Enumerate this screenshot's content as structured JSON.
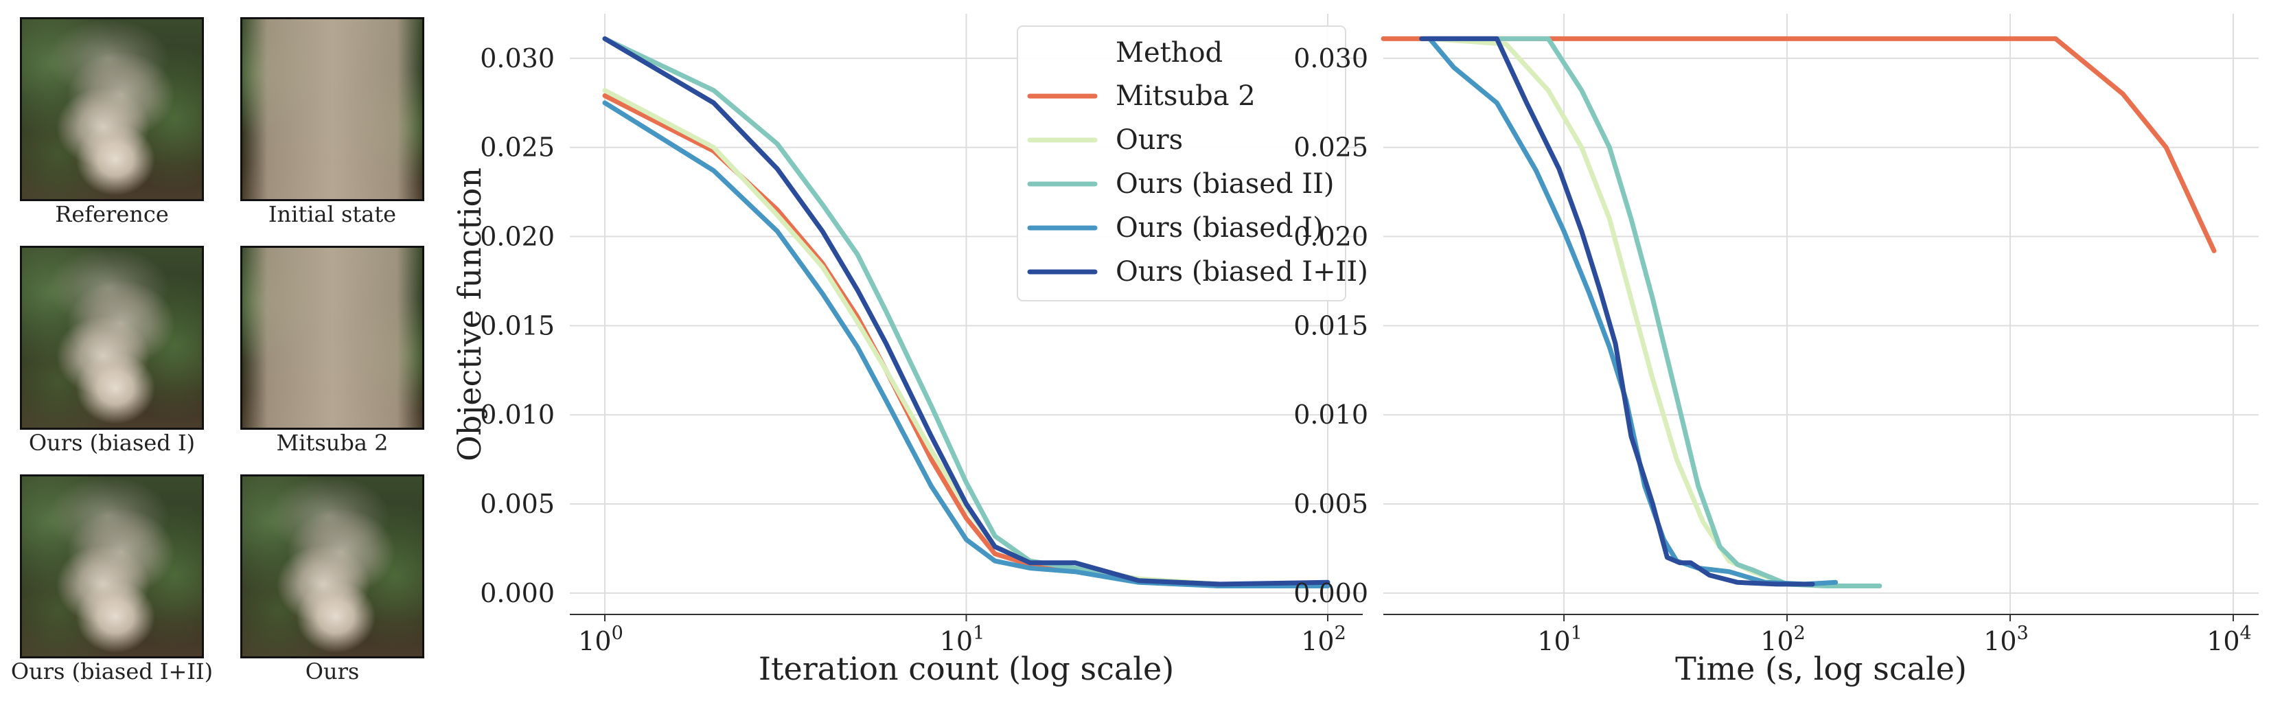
{
  "thumbnails": [
    {
      "label": "Reference",
      "variant": "smoke"
    },
    {
      "label": "Initial state",
      "variant": "fog"
    },
    {
      "label": "Ours (biased I)",
      "variant": "smoke"
    },
    {
      "label": "Mitsuba 2",
      "variant": "fog"
    },
    {
      "label": "Ours (biased I+II)",
      "variant": "smoke"
    },
    {
      "label": "Ours",
      "variant": "smoke"
    }
  ],
  "chart_data": [
    {
      "type": "line",
      "xscale": "log",
      "xlabel": "Iteration count (log scale)",
      "ylabel": "Objective function",
      "ylim": [
        -0.0012,
        0.0325
      ],
      "xlim": [
        0.8,
        125
      ],
      "xticks": [
        {
          "v": 1,
          "base": "10",
          "exp": "0"
        },
        {
          "v": 10,
          "base": "10",
          "exp": "1"
        },
        {
          "v": 100,
          "base": "10",
          "exp": "2"
        }
      ],
      "yticks": [
        "0.000",
        "0.005",
        "0.010",
        "0.015",
        "0.020",
        "0.025",
        "0.030"
      ],
      "grid": true,
      "legend": {
        "title": "Method",
        "position": "top-right"
      },
      "series": [
        {
          "name": "Mitsuba 2",
          "color": "#e8704e",
          "points": [
            [
              1,
              0.0279
            ],
            [
              2,
              0.0248
            ],
            [
              3,
              0.0215
            ],
            [
              4,
              0.0185
            ],
            [
              5,
              0.0155
            ],
            [
              6,
              0.0125
            ],
            [
              8,
              0.0075
            ],
            [
              10,
              0.0042
            ],
            [
              12,
              0.0022
            ],
            [
              15,
              0.0016
            ],
            [
              20,
              0.0013
            ],
            [
              30,
              0.0007
            ],
            [
              50,
              0.0004
            ],
            [
              100,
              0.0004
            ]
          ]
        },
        {
          "name": "Ours",
          "color": "#d9eebb",
          "points": [
            [
              1,
              0.0282
            ],
            [
              2,
              0.025
            ],
            [
              3,
              0.0212
            ],
            [
              4,
              0.0183
            ],
            [
              5,
              0.0152
            ],
            [
              6,
              0.0125
            ],
            [
              8,
              0.008
            ],
            [
              10,
              0.0048
            ],
            [
              12,
              0.0026
            ],
            [
              15,
              0.0018
            ],
            [
              20,
              0.0014
            ],
            [
              30,
              0.0008
            ],
            [
              50,
              0.0005
            ],
            [
              100,
              0.0004
            ]
          ]
        },
        {
          "name": "Ours (biased II)",
          "color": "#82c7bc",
          "points": [
            [
              1,
              0.0311
            ],
            [
              2,
              0.0282
            ],
            [
              3,
              0.0252
            ],
            [
              4,
              0.0218
            ],
            [
              5,
              0.019
            ],
            [
              6,
              0.0158
            ],
            [
              8,
              0.0105
            ],
            [
              10,
              0.0062
            ],
            [
              12,
              0.0032
            ],
            [
              15,
              0.0018
            ],
            [
              20,
              0.0014
            ],
            [
              30,
              0.0007
            ],
            [
              50,
              0.0005
            ],
            [
              100,
              0.0004
            ]
          ]
        },
        {
          "name": "Ours (biased I)",
          "color": "#4596c2",
          "points": [
            [
              1,
              0.0275
            ],
            [
              2,
              0.0237
            ],
            [
              3,
              0.0203
            ],
            [
              4,
              0.0168
            ],
            [
              5,
              0.0138
            ],
            [
              6,
              0.0108
            ],
            [
              8,
              0.006
            ],
            [
              10,
              0.003
            ],
            [
              12,
              0.0018
            ],
            [
              15,
              0.0014
            ],
            [
              20,
              0.0012
            ],
            [
              30,
              0.0006
            ],
            [
              50,
              0.0004
            ],
            [
              100,
              0.0004
            ]
          ]
        },
        {
          "name": "Ours (biased I+II)",
          "color": "#2b4c9b",
          "points": [
            [
              1,
              0.0311
            ],
            [
              2,
              0.0275
            ],
            [
              3,
              0.0238
            ],
            [
              4,
              0.0203
            ],
            [
              5,
              0.017
            ],
            [
              6,
              0.014
            ],
            [
              8,
              0.0088
            ],
            [
              10,
              0.005
            ],
            [
              12,
              0.0026
            ],
            [
              15,
              0.0017
            ],
            [
              20,
              0.0017
            ],
            [
              30,
              0.0007
            ],
            [
              50,
              0.0005
            ],
            [
              100,
              0.0006
            ]
          ]
        }
      ]
    },
    {
      "type": "line",
      "xscale": "log",
      "xlabel": "Time (s, log scale)",
      "ylabel": "",
      "ylim": [
        -0.0012,
        0.0325
      ],
      "xlim": [
        1.55,
        13000
      ],
      "xticks": [
        {
          "v": 10,
          "base": "10",
          "exp": "1"
        },
        {
          "v": 100,
          "base": "10",
          "exp": "2"
        },
        {
          "v": 1000,
          "base": "10",
          "exp": "3"
        },
        {
          "v": 10000,
          "base": "10",
          "exp": "4"
        }
      ],
      "yticks": [
        "0.000",
        "0.005",
        "0.010",
        "0.015",
        "0.020",
        "0.025",
        "0.030"
      ],
      "grid": true,
      "series": [
        {
          "name": "Mitsuba 2",
          "color": "#e8704e",
          "points": [
            [
              1.55,
              0.0311
            ],
            [
              1600,
              0.0311
            ],
            [
              3200,
              0.028
            ],
            [
              5000,
              0.025
            ],
            [
              8200,
              0.0192
            ]
          ]
        },
        {
          "name": "Ours",
          "color": "#d9eebb",
          "points": [
            [
              2.5,
              0.0311
            ],
            [
              5.5,
              0.0308
            ],
            [
              8.5,
              0.0282
            ],
            [
              12,
              0.025
            ],
            [
              16,
              0.021
            ],
            [
              20,
              0.0165
            ],
            [
              25,
              0.012
            ],
            [
              32,
              0.0075
            ],
            [
              42,
              0.004
            ],
            [
              55,
              0.0018
            ],
            [
              70,
              0.0012
            ],
            [
              100,
              0.0005
            ],
            [
              150,
              0.0004
            ],
            [
              250,
              0.0004
            ]
          ]
        },
        {
          "name": "Ours (biased II)",
          "color": "#82c7bc",
          "points": [
            [
              2.5,
              0.0311
            ],
            [
              8.5,
              0.0311
            ],
            [
              12,
              0.0282
            ],
            [
              16,
              0.025
            ],
            [
              20,
              0.021
            ],
            [
              25,
              0.0165
            ],
            [
              32,
              0.011
            ],
            [
              40,
              0.006
            ],
            [
              50,
              0.0026
            ],
            [
              60,
              0.0016
            ],
            [
              70,
              0.0013
            ],
            [
              100,
              0.0005
            ],
            [
              150,
              0.0004
            ],
            [
              260,
              0.0004
            ]
          ]
        },
        {
          "name": "Ours (biased I)",
          "color": "#4596c2",
          "points": [
            [
              2.5,
              0.0311
            ],
            [
              3.2,
              0.0295
            ],
            [
              5,
              0.0275
            ],
            [
              7.5,
              0.0237
            ],
            [
              10,
              0.0203
            ],
            [
              13,
              0.0168
            ],
            [
              16,
              0.0138
            ],
            [
              19,
              0.0108
            ],
            [
              23,
              0.006
            ],
            [
              28,
              0.003
            ],
            [
              32,
              0.0018
            ],
            [
              40,
              0.0014
            ],
            [
              55,
              0.0012
            ],
            [
              80,
              0.0006
            ],
            [
              120,
              0.0005
            ],
            [
              165,
              0.0006
            ]
          ]
        },
        {
          "name": "Ours (biased I+II)",
          "color": "#2b4c9b",
          "points": [
            [
              2.3,
              0.0311
            ],
            [
              5,
              0.0311
            ],
            [
              6.8,
              0.0275
            ],
            [
              9.5,
              0.0238
            ],
            [
              12,
              0.0203
            ],
            [
              14.5,
              0.017
            ],
            [
              17,
              0.014
            ],
            [
              20,
              0.0088
            ],
            [
              25,
              0.005
            ],
            [
              29,
              0.002
            ],
            [
              33,
              0.0017
            ],
            [
              37,
              0.0017
            ],
            [
              45,
              0.001
            ],
            [
              60,
              0.0006
            ],
            [
              90,
              0.0005
            ],
            [
              130,
              0.0005
            ]
          ]
        }
      ]
    }
  ]
}
